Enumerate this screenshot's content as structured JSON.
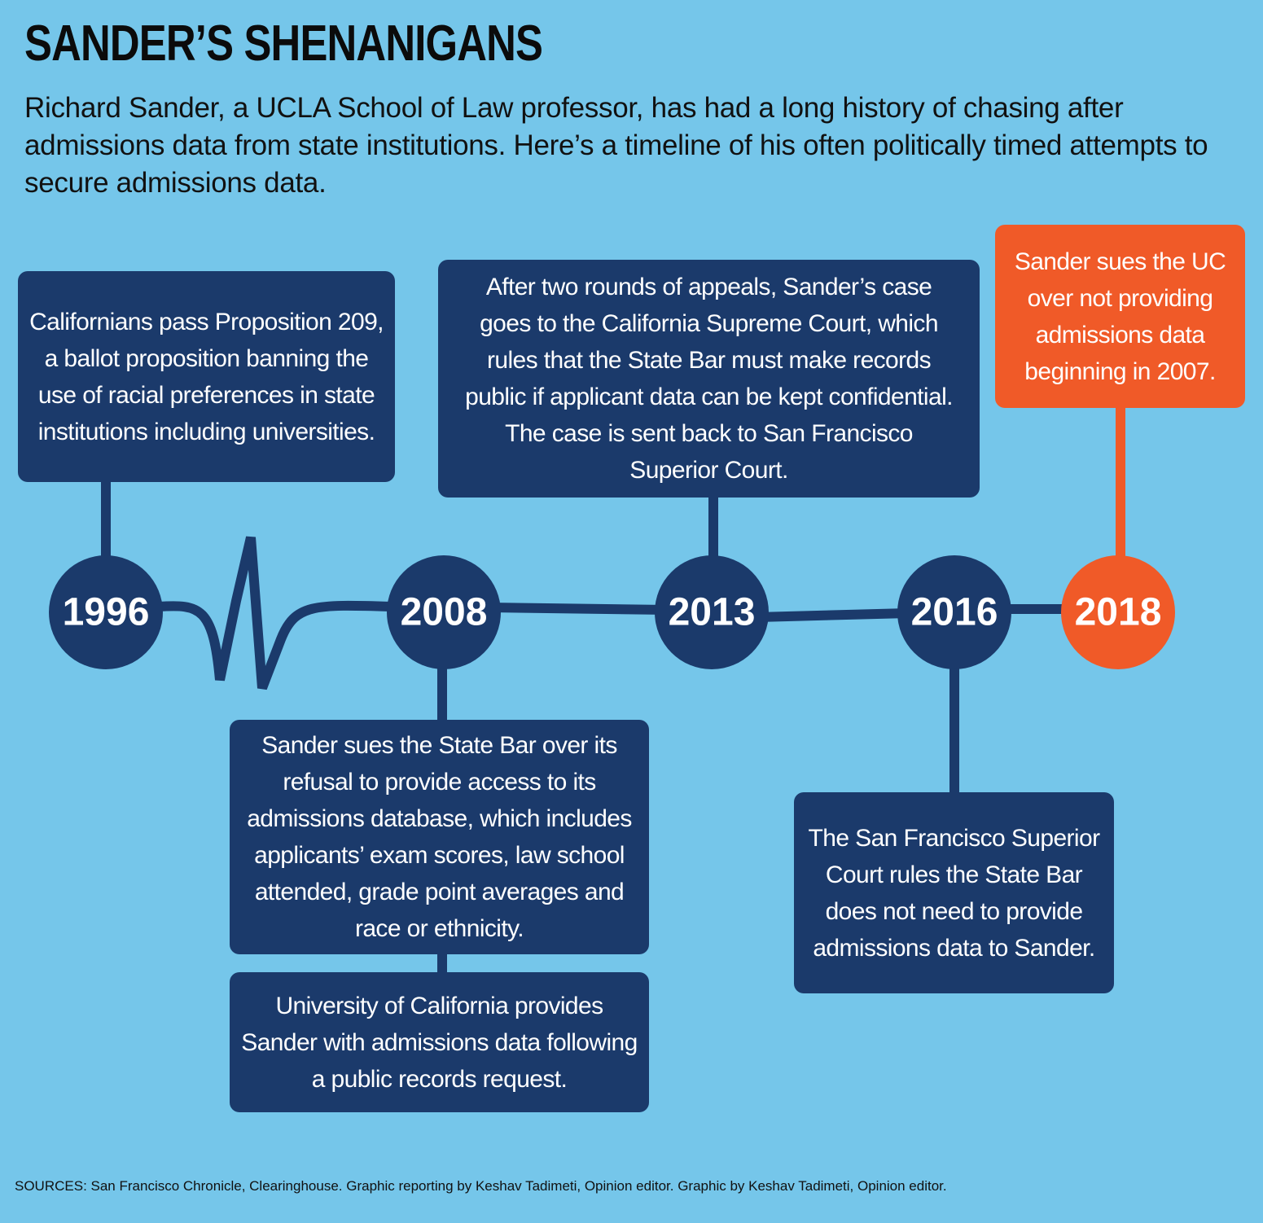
{
  "title": "SANDER’S SHENANIGANS",
  "subtitle": "Richard Sander, a UCLA School of Law professor, has had a long history of chasing after admissions data from state institutions. Here’s a timeline of his often politically timed attempts to secure admissions data.",
  "events": [
    {
      "year": "1996",
      "notes": [
        "Californians pass Proposition 209, a ballot proposition banning the use of racial preferences in state institutions including universities."
      ]
    },
    {
      "year": "2008",
      "notes": [
        "Sander sues the State Bar over its refusal to provide access to its admissions database, which includes applicants’ exam scores, law school attended, grade point averages and race or ethnicity.",
        "University of California provides Sander with admissions data following a public records request."
      ]
    },
    {
      "year": "2013",
      "notes": [
        "After two rounds of appeals, Sander’s case goes to the California Supreme Court, which rules that the State Bar must make records public if applicant data can be kept confidential. The case is sent back to San Francisco Superior Court."
      ]
    },
    {
      "year": "2016",
      "notes": [
        "The San Francisco Superior Court rules the State Bar does not need to provide admissions data to Sander."
      ]
    },
    {
      "year": "2018",
      "notes": [
        "Sander sues the UC over not providing admissions data beginning in 2007."
      ]
    }
  ],
  "source": "SOURCES: San Francisco Chronicle, Clearinghouse. Graphic reporting by Keshav Tadimeti, Opinion editor. Graphic by Keshav Tadimeti, Opinion editor."
}
